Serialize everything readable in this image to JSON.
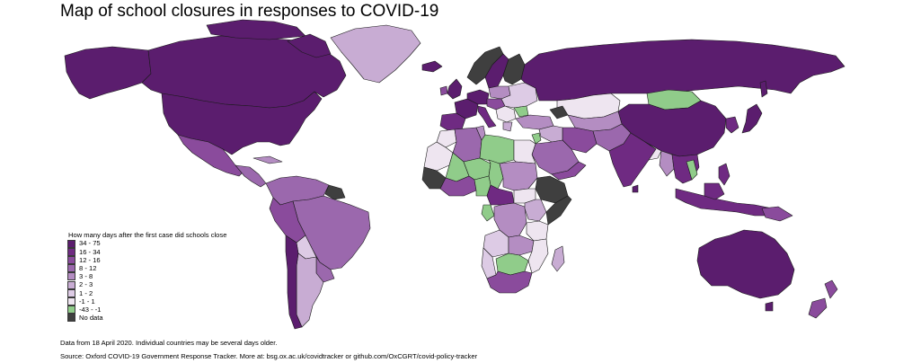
{
  "title": "Map of school closures in responses to COVID-19",
  "colors": {
    "c1": "#5b1d6e",
    "c2": "#6f2a82",
    "c3": "#8a4b9c",
    "c4": "#9b68ad",
    "c5": "#b48dc2",
    "c6": "#c8acd3",
    "c7": "#ddcbe5",
    "c8": "#eee5f0",
    "c9": "#90cc8a",
    "nodata": "#3f3f3f",
    "border": "#1a1a1a"
  },
  "legend": {
    "title": "How many days after the first case did schools close",
    "items": [
      {
        "label": "34 - 75",
        "color": "#5b1d6e"
      },
      {
        "label": "16 - 34",
        "color": "#6f2a82"
      },
      {
        "label": "12 - 16",
        "color": "#8a4b9c"
      },
      {
        "label": "8 - 12",
        "color": "#9b68ad"
      },
      {
        "label": "3 - 8",
        "color": "#b48dc2"
      },
      {
        "label": "2 - 3",
        "color": "#c8acd3"
      },
      {
        "label": "1 - 2",
        "color": "#ddcbe5"
      },
      {
        "label": "-1 - 1",
        "color": "#eee5f0"
      },
      {
        "label": "-43 - -1",
        "color": "#90cc8a"
      },
      {
        "label": "No data",
        "color": "#3f3f3f"
      }
    ]
  },
  "footnotes": {
    "line1": "Data from 18 April 2020. Individual countries may be several days older.",
    "line2": "Source: Oxford COVID-19 Government Response Tracker. More at: bsg.ox.ac.uk/covidtracker or github.com/OxCGRT/covid-policy-tracker"
  }
}
